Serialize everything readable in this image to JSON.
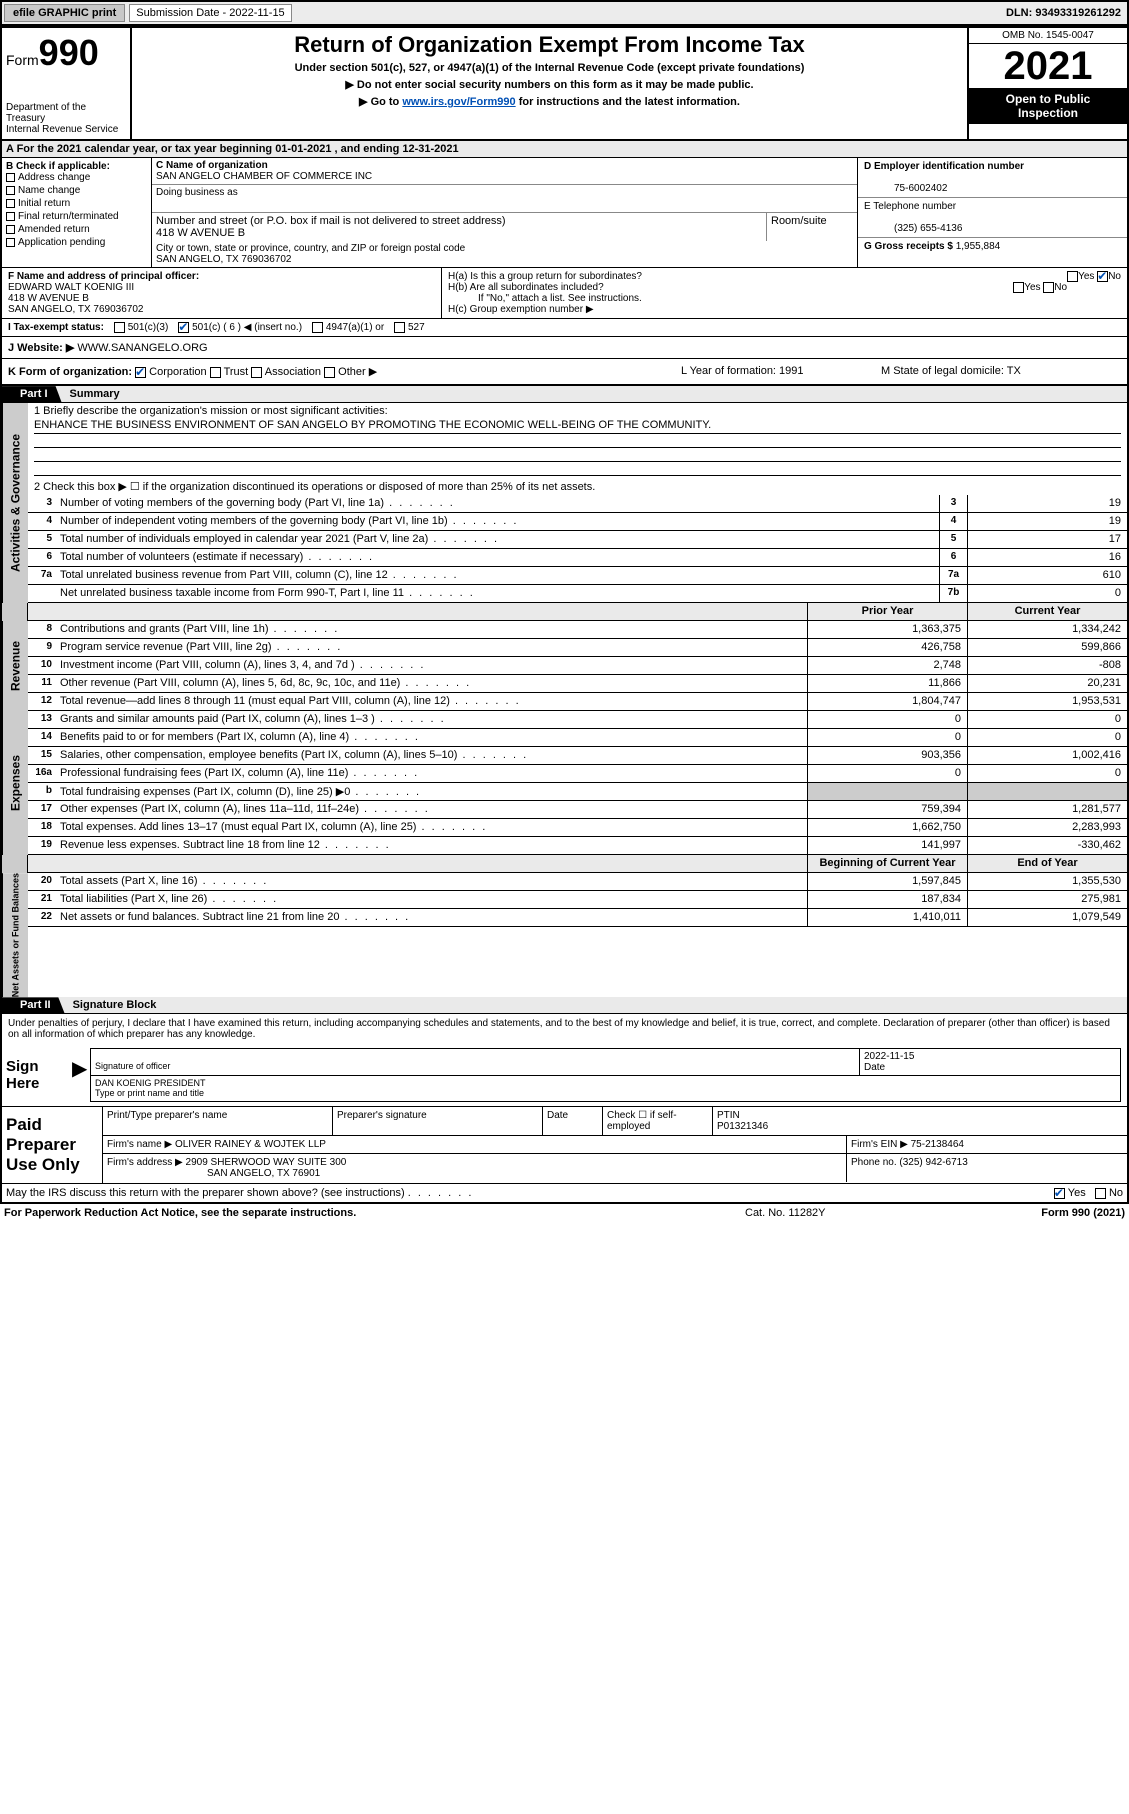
{
  "topbar": {
    "efile": "efile GRAPHIC print",
    "subdate_label": "Submission Date - 2022-11-15",
    "dln": "DLN: 93493319261292"
  },
  "header": {
    "form_word": "Form",
    "form_num": "990",
    "dept": "Department of the Treasury",
    "irs": "Internal Revenue Service",
    "title": "Return of Organization Exempt From Income Tax",
    "sub1": "Under section 501(c), 527, or 4947(a)(1) of the Internal Revenue Code (except private foundations)",
    "sub2": "▶ Do not enter social security numbers on this form as it may be made public.",
    "sub3a": "▶ Go to ",
    "sub3_link": "www.irs.gov/Form990",
    "sub3b": " for instructions and the latest information.",
    "omb": "OMB No. 1545-0047",
    "year": "2021",
    "open1": "Open to Public",
    "open2": "Inspection"
  },
  "rowA": "A For the 2021 calendar year, or tax year beginning 01-01-2021    , and ending 12-31-2021",
  "B": {
    "label": "B Check if applicable:",
    "opts": [
      "Address change",
      "Name change",
      "Initial return",
      "Final return/terminated",
      "Amended return",
      "Application pending"
    ]
  },
  "C": {
    "name_label": "C Name of organization",
    "name": "SAN ANGELO CHAMBER OF COMMERCE INC",
    "dba_label": "Doing business as",
    "dba": "",
    "street_label": "Number and street (or P.O. box if mail is not delivered to street address)",
    "room_label": "Room/suite",
    "street": "418 W AVENUE B",
    "city_label": "City or town, state or province, country, and ZIP or foreign postal code",
    "city": "SAN ANGELO, TX  769036702"
  },
  "D": {
    "label": "D Employer identification number",
    "value": "75-6002402"
  },
  "E": {
    "label": "E Telephone number",
    "value": "(325) 655-4136"
  },
  "G": {
    "label": "G Gross receipts $",
    "value": "1,955,884"
  },
  "F": {
    "label": "F  Name and address of principal officer:",
    "name": "EDWARD WALT KOENIG III",
    "street": "418 W AVENUE B",
    "city": "SAN ANGELO, TX  769036702"
  },
  "H": {
    "a": "H(a)  Is this a group return for subordinates?",
    "b": "H(b)  Are all subordinates included?",
    "note": "If \"No,\" attach a list. See instructions.",
    "c": "H(c)  Group exemption number ▶",
    "yes": "Yes",
    "no": "No"
  },
  "I": {
    "label": "I   Tax-exempt status:",
    "o1": "501(c)(3)",
    "o2": "501(c) ( 6 ) ◀ (insert no.)",
    "o3": "4947(a)(1) or",
    "o4": "527"
  },
  "J": {
    "label": "J   Website: ▶",
    "value": "WWW.SANANGELO.ORG"
  },
  "K": {
    "label": "K Form of organization:",
    "corp": "Corporation",
    "trust": "Trust",
    "assoc": "Association",
    "other": "Other ▶",
    "L": "L Year of formation: 1991",
    "M": "M State of legal domicile: TX"
  },
  "part1": {
    "label": "Part I",
    "title": "Summary"
  },
  "mission": {
    "q": "1   Briefly describe the organization's mission or most significant activities:",
    "text": "ENHANCE THE BUSINESS ENVIRONMENT OF SAN ANGELO BY PROMOTING THE ECONOMIC WELL-BEING OF THE COMMUNITY."
  },
  "line2": "2   Check this box ▶ ☐ if the organization discontinued its operations or disposed of more than 25% of its net assets.",
  "governance": [
    {
      "n": "3",
      "d": "Number of voting members of the governing body (Part VI, line 1a)",
      "nn": "3",
      "v": "19"
    },
    {
      "n": "4",
      "d": "Number of independent voting members of the governing body (Part VI, line 1b)",
      "nn": "4",
      "v": "19"
    },
    {
      "n": "5",
      "d": "Total number of individuals employed in calendar year 2021 (Part V, line 2a)",
      "nn": "5",
      "v": "17"
    },
    {
      "n": "6",
      "d": "Total number of volunteers (estimate if necessary)",
      "nn": "6",
      "v": "16"
    },
    {
      "n": "7a",
      "d": "Total unrelated business revenue from Part VIII, column (C), line 12",
      "nn": "7a",
      "v": "610"
    },
    {
      "n": "",
      "d": "Net unrelated business taxable income from Form 990-T, Part I, line 11",
      "nn": "7b",
      "v": "0"
    }
  ],
  "col_hdr": {
    "prior": "Prior Year",
    "current": "Current Year",
    "boy": "Beginning of Current Year",
    "eoy": "End of Year"
  },
  "revenue": [
    {
      "n": "8",
      "d": "Contributions and grants (Part VIII, line 1h)",
      "p": "1,363,375",
      "c": "1,334,242"
    },
    {
      "n": "9",
      "d": "Program service revenue (Part VIII, line 2g)",
      "p": "426,758",
      "c": "599,866"
    },
    {
      "n": "10",
      "d": "Investment income (Part VIII, column (A), lines 3, 4, and 7d )",
      "p": "2,748",
      "c": "-808"
    },
    {
      "n": "11",
      "d": "Other revenue (Part VIII, column (A), lines 5, 6d, 8c, 9c, 10c, and 11e)",
      "p": "11,866",
      "c": "20,231"
    },
    {
      "n": "12",
      "d": "Total revenue—add lines 8 through 11 (must equal Part VIII, column (A), line 12)",
      "p": "1,804,747",
      "c": "1,953,531"
    }
  ],
  "expenses": [
    {
      "n": "13",
      "d": "Grants and similar amounts paid (Part IX, column (A), lines 1–3 )",
      "p": "0",
      "c": "0"
    },
    {
      "n": "14",
      "d": "Benefits paid to or for members (Part IX, column (A), line 4)",
      "p": "0",
      "c": "0"
    },
    {
      "n": "15",
      "d": "Salaries, other compensation, employee benefits (Part IX, column (A), lines 5–10)",
      "p": "903,356",
      "c": "1,002,416"
    },
    {
      "n": "16a",
      "d": "Professional fundraising fees (Part IX, column (A), line 11e)",
      "p": "0",
      "c": "0"
    },
    {
      "n": "b",
      "d": "Total fundraising expenses (Part IX, column (D), line 25) ▶0",
      "p": "",
      "c": "",
      "shade": true
    },
    {
      "n": "17",
      "d": "Other expenses (Part IX, column (A), lines 11a–11d, 11f–24e)",
      "p": "759,394",
      "c": "1,281,577"
    },
    {
      "n": "18",
      "d": "Total expenses. Add lines 13–17 (must equal Part IX, column (A), line 25)",
      "p": "1,662,750",
      "c": "2,283,993"
    },
    {
      "n": "19",
      "d": "Revenue less expenses. Subtract line 18 from line 12",
      "p": "141,997",
      "c": "-330,462"
    }
  ],
  "netassets": [
    {
      "n": "20",
      "d": "Total assets (Part X, line 16)",
      "p": "1,597,845",
      "c": "1,355,530"
    },
    {
      "n": "21",
      "d": "Total liabilities (Part X, line 26)",
      "p": "187,834",
      "c": "275,981"
    },
    {
      "n": "22",
      "d": "Net assets or fund balances. Subtract line 21 from line 20",
      "p": "1,410,011",
      "c": "1,079,549"
    }
  ],
  "part2": {
    "label": "Part II",
    "title": "Signature Block"
  },
  "sig": {
    "decl": "Under penalties of perjury, I declare that I have examined this return, including accompanying schedules and statements, and to the best of my knowledge and belief, it is true, correct, and complete. Declaration of preparer (other than officer) is based on all information of which preparer has any knowledge.",
    "signhere": "Sign Here",
    "sig_of_officer": "Signature of officer",
    "date_label": "Date",
    "date": "2022-11-15",
    "name": "DAN KOENIG PRESIDENT",
    "name_label": "Type or print name and title"
  },
  "paid": {
    "label": "Paid Preparer Use Only",
    "col1": "Print/Type preparer's name",
    "col2": "Preparer's signature",
    "col3": "Date",
    "col4a": "Check ☐ if self-employed",
    "col5_label": "PTIN",
    "col5": "P01321346",
    "firm_label": "Firm's name   ▶",
    "firm": "OLIVER RAINEY & WOJTEK LLP",
    "ein_label": "Firm's EIN ▶",
    "ein": "75-2138464",
    "addr_label": "Firm's address ▶",
    "addr1": "2909 SHERWOOD WAY SUITE 300",
    "addr2": "SAN ANGELO, TX  76901",
    "phone_label": "Phone no.",
    "phone": "(325) 942-6713"
  },
  "foot": {
    "may": "May the IRS discuss this return with the preparer shown above? (see instructions)",
    "yes": "Yes",
    "no": "No",
    "pra": "For Paperwork Reduction Act Notice, see the separate instructions.",
    "cat": "Cat. No. 11282Y",
    "form": "Form 990 (2021)"
  },
  "side": {
    "gov": "Activities & Governance",
    "rev": "Revenue",
    "exp": "Expenses",
    "net": "Net Assets or Fund Balances"
  }
}
